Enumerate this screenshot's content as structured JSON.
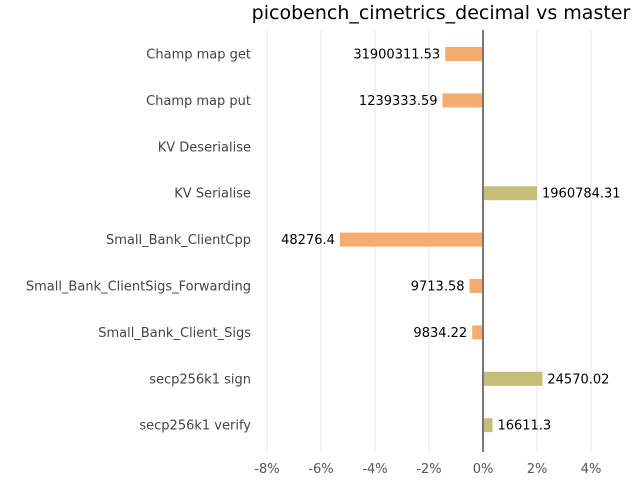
{
  "chart_data": {
    "type": "bar",
    "orientation": "horizontal",
    "title": "picobench_cimetrics_decimal vs master",
    "xlabel": "",
    "ylabel": "",
    "xlim": [
      -9,
      5.5
    ],
    "xticks": [
      "-8%",
      "-6%",
      "-4%",
      "-2%",
      "0%",
      "2%",
      "4%"
    ],
    "xtick_values": [
      -8,
      -6,
      -4,
      -2,
      0,
      2,
      4
    ],
    "grid": true,
    "categories": [
      "Champ map get",
      "Champ map put",
      "KV Deserialise",
      "KV Serialise",
      "Small_Bank_ClientCpp",
      "Small_Bank_ClientSigs_Forwarding",
      "Small_Bank_Client_Sigs",
      "secp256k1 sign",
      "secp256k1 verify"
    ],
    "values": [
      -1.4,
      -1.5,
      0,
      2.0,
      -5.3,
      -0.5,
      -0.4,
      2.2,
      0.35
    ],
    "value_labels": [
      "31900311.53",
      "1239333.59",
      "",
      "1960784.31",
      "48276.4",
      "9713.58",
      "9834.22",
      "24570.02",
      "16611.3"
    ],
    "colors": {
      "negative": "#f4ad6e",
      "positive": "#c5bd78",
      "zero_line": "#777777",
      "grid": "#e6e6e6"
    }
  }
}
